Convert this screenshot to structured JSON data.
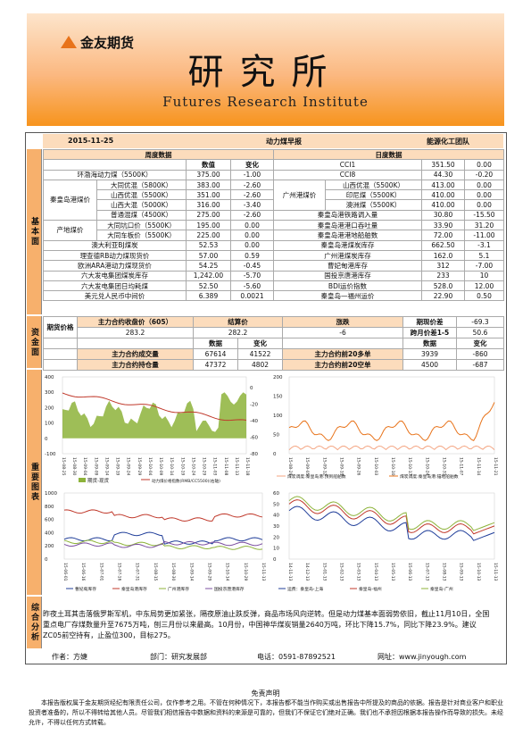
{
  "header": {
    "company": "金友期货",
    "title": "研究所",
    "subtitle": "Futures Research Institute"
  },
  "info": {
    "date": "2015-11-25",
    "report": "动力煤早报",
    "team": "能源化工团队"
  },
  "labels": {
    "basic": "基本面",
    "capital": "资金面",
    "charts": "重要图表",
    "analysis": "综合分析"
  },
  "basic": {
    "weekly_header": "周度数据",
    "daily_header": "日度数据",
    "col_value": "数值",
    "col_change": "变化",
    "rows": [
      {
        "l": "环渤海动力煤（5500K）",
        "v": "375.00",
        "c": "-1.00",
        "r": "CCI1",
        "rv": "351.50",
        "rc": "0.00"
      },
      {
        "l": "大同优混（5800K）",
        "v": "383.00",
        "c": "-2.60",
        "r": "山西优混（5500K）",
        "rv": "413.00",
        "rc": "0.00"
      },
      {
        "l": "山西优混（5500K）",
        "v": "351.00",
        "c": "-2.60",
        "r": "印尼煤（5500K）",
        "rv": "410.00",
        "rc": "0.00"
      },
      {
        "l": "山西大混（5000K）",
        "v": "316.00",
        "c": "-3.40",
        "r": "澳洲煤（5500K）",
        "rv": "410.00",
        "rc": "0.00"
      },
      {
        "l": "普通混煤（4500K）",
        "v": "275.00",
        "c": "-2.60",
        "r": "秦皇岛港铁路调入量",
        "rv": "30.80",
        "rc": "-15.50"
      },
      {
        "l": "大同坑口价（5500K）",
        "v": "195.00",
        "c": "0.00",
        "r": "秦皇岛港港口吞吐量",
        "rv": "33.90",
        "rc": "31.20"
      },
      {
        "l": "大同车板价（5500K）",
        "v": "225.00",
        "c": "0.00",
        "r": "秦皇岛港港地船舶数",
        "rv": "72.00",
        "rc": "-11.00"
      },
      {
        "l": "澳大利亚BJ煤炭",
        "v": "52.53",
        "c": "0.00",
        "r": "秦皇岛港煤炭库存",
        "rv": "662.50",
        "rc": "-3.1"
      },
      {
        "l": "理查德RB动力煤现货价",
        "v": "57.00",
        "c": "0.59",
        "r": "广州港煤炭库存",
        "rv": "162.0",
        "rc": "5.1"
      },
      {
        "l": "欧洲ARA港动力煤现货价",
        "v": "54.25",
        "c": "-0.45",
        "r": "曹妃甸港库存",
        "rv": "312",
        "rc": "-7.00"
      },
      {
        "l": "六大发电集团煤炭库存",
        "v": "1,242.00",
        "c": "-5.70",
        "r": "国投京唐港库存",
        "rv": "233",
        "rc": "10"
      },
      {
        "l": "六大发电集团日均耗煤",
        "v": "52.50",
        "c": "-5.60",
        "r": "BDI运价指数",
        "rv": "528.0",
        "rc": "12.00"
      },
      {
        "l": "美元兑人民币中间价",
        "v": "6.389",
        "c": "0.0021",
        "r": "秦皇岛—福州运价",
        "rv": "22.90",
        "rc": "0.50"
      }
    ],
    "cci8": {
      "label": "CCI8",
      "v": "44.30",
      "c": "-0.20"
    },
    "group1": "秦皇岛港煤价",
    "group2": "产地煤价",
    "group3": "广州港煤价"
  },
  "capital": {
    "futures_price": "期货价格",
    "main_close": "主力合约收盘价（605）",
    "settle": "结算价",
    "chg": "涨跌",
    "main_close_v": "283.2",
    "settle_v": "282.2",
    "chg_v": "-6",
    "basis_label": "期现价差",
    "basis_v": "-69.3",
    "spread_label": "跨月价差1-5",
    "spread_v": "50.6",
    "data": "数据",
    "change": "变化",
    "vol_label": "主力合约成交量",
    "vol_v": "67614",
    "vol_c": "41522",
    "oi_label": "主力合约持仓量",
    "oi_v": "47372",
    "oi_c": "4802",
    "top20l": "主力合约前20多单",
    "top20l_v": "3939",
    "top20l_c": "-860",
    "top20s": "主力合约前20空单",
    "top20s_v": "4500",
    "top20s_c": "-687"
  },
  "charts": {
    "c1_legend": [
      "期货-现货",
      "动力煤价格指数(RMB/CC5500)(右轴)"
    ],
    "c2_legend": [
      "煤炭调度:秦皇岛港:预到船舶数",
      "煤炭调度:秦皇岛港:锚地船舶数"
    ],
    "c3_legend": [
      "曹妃甸库存",
      "秦皇岛港库存",
      "广州港库存",
      "国投京唐港库存"
    ],
    "c4_legend": [
      "运费：秦皇岛-上海",
      "秦皇岛-福州",
      "秦皇岛-广州"
    ],
    "c1_yl": [
      "400",
      "300",
      "200",
      "100",
      "0",
      "-100"
    ],
    "c1_yr": [
      "0",
      "-20",
      "-40",
      "-60",
      "-80"
    ],
    "c2_y": [
      "200",
      "150",
      "100",
      "50",
      "0"
    ],
    "c3_y": [
      "1000",
      "800",
      "600",
      "400",
      "200",
      "0"
    ],
    "c4_y": [
      "60",
      "50",
      "40",
      "30",
      "20",
      "10",
      "0"
    ],
    "c1_x": [
      "15-08-25",
      "15-08-30",
      "15-09-04",
      "15-09-09",
      "15-09-14",
      "15-09-19",
      "15-09-24",
      "15-09-29",
      "15-10-04",
      "15-10-09",
      "15-10-14",
      "15-10-19",
      "15-10-24",
      "15-10-29",
      "15-11-03",
      "15-11-08",
      "15-11-13",
      "15-11-18"
    ],
    "c2_x": [
      "15-08-29",
      "15-09-05",
      "15-09-12",
      "15-09-19",
      "15-09-26",
      "15-10-03",
      "15-10-10",
      "15-10-17",
      "15-10-24",
      "15-10-31",
      "15-11-07",
      "15-11-14",
      "15-11-21"
    ],
    "c3_x": [
      "15-06-01",
      "15-06-16",
      "15-07-01",
      "15-07-16",
      "15-07-31",
      "15-08-15",
      "15-08-30",
      "15-09-14",
      "15-09-29",
      "15-10-14",
      "15-10-29",
      "15-11-13"
    ],
    "c4_x": [
      "14-11-13",
      "14-12-13",
      "15-01-13",
      "15-02-13",
      "15-03-13",
      "15-04-13",
      "15-05-13",
      "15-06-13",
      "15-07-13",
      "15-08-13",
      "15-09-13",
      "15-10-13",
      "15-11-13"
    ]
  },
  "analysis": {
    "text": "昨夜土耳其击落俄罗斯军机，中东局势更加紧张，隔夜原油止跌反弹，商品市场风向逆转。但是动力煤基本面弱势依旧，截止11月10日，全国重点电厂存煤数量升至7675万吨，刨三月份以来最高。10月份，中国神华煤炭销量2640万吨，环比下降15.7%，同比下降23.9%。建议ZC05前空持有，止盈位300，目标275。"
  },
  "footer": {
    "author": "作者：方婕",
    "dept": "部门：研究发展部",
    "phone": "电话：0591-87892521",
    "site": "网址：www.jinyough.com"
  },
  "disclaimer": {
    "title": "免责声明",
    "text": "本报告版权属于金友期货经纪有限责任公司，仅作参考之用。不管在何种情况下，本报告都不能当作购买或出售报告中所提及的商品的依据。报告是针对商业客户和职业投资者准备的，所以不得转给其他人员。尽管我们相信报告中数据和资料的来源是可靠的，但我们不保证它们绝对正确。我们也不承担因根据本报告操作而导致的损失。未经允许，不得以任何方式转载。"
  },
  "colors": {
    "orange": "#f7941d",
    "header_cell": "#fcdcbc",
    "red": "#c0392b",
    "green": "#5cb85c",
    "blue": "#1f3d99",
    "olive": "#8db33a",
    "salmon": "#f4a582"
  }
}
